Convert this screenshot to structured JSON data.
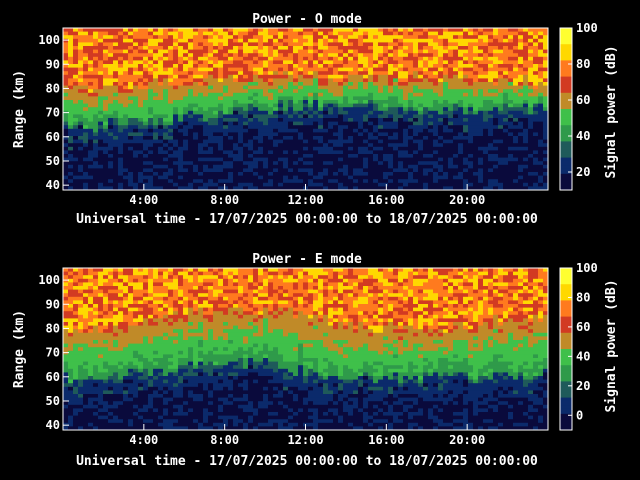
{
  "figure": {
    "background": "#000000",
    "colormap": [
      "#0a0a3c",
      "#0b2a6b",
      "#1f5a5a",
      "#2f9a4a",
      "#3fc04a",
      "#c08a28",
      "#d23a22",
      "#ff7a1e",
      "#ffd800",
      "#ffff30"
    ]
  },
  "chart_data": [
    {
      "type": "heatmap",
      "title": "Power - O mode",
      "xlabel": "Universal time - 17/07/2025 00:00:00 to 18/07/2025 00:00:00",
      "ylabel": "Range (km)",
      "colorbar_label": "Signal power (dB)",
      "x_ticks": [
        "4:00",
        "8:00",
        "12:00",
        "16:00",
        "20:00"
      ],
      "x_tick_hours": [
        4,
        8,
        12,
        16,
        20
      ],
      "xlim_hours": [
        0,
        24
      ],
      "y_ticks": [
        40,
        50,
        60,
        70,
        80,
        90,
        100
      ],
      "ylim": [
        38,
        105
      ],
      "colorbar_ticks": [
        20,
        40,
        60,
        80,
        100
      ],
      "colorbar_range": [
        10,
        100
      ],
      "profile_hours": [
        0,
        2,
        4,
        6,
        8,
        10,
        12,
        14,
        16,
        18,
        20,
        22,
        24
      ],
      "green_band_bottom_km": [
        64,
        65,
        66,
        68,
        70,
        72,
        73,
        74,
        72,
        71,
        72,
        72,
        72
      ],
      "red_band_bottom_km": [
        80,
        80,
        82,
        84,
        84,
        85,
        86,
        84,
        84,
        84,
        84,
        84,
        82
      ]
    },
    {
      "type": "heatmap",
      "title": "Power - E mode",
      "xlabel": "Universal time - 17/07/2025 00:00:00 to 18/07/2025 00:00:00",
      "ylabel": "Range (km)",
      "colorbar_label": "Signal power (dB)",
      "x_ticks": [
        "4:00",
        "8:00",
        "12:00",
        "16:00",
        "20:00"
      ],
      "x_tick_hours": [
        4,
        8,
        12,
        16,
        20
      ],
      "xlim_hours": [
        0,
        24
      ],
      "y_ticks": [
        40,
        50,
        60,
        70,
        80,
        90,
        100
      ],
      "ylim": [
        38,
        105
      ],
      "colorbar_ticks": [
        0,
        20,
        40,
        60,
        80,
        100
      ],
      "colorbar_range": [
        -10,
        100
      ],
      "profile_hours": [
        0,
        2,
        4,
        6,
        8,
        10,
        12,
        14,
        16,
        18,
        20,
        22,
        24
      ],
      "green_band_bottom_km": [
        60,
        60,
        62,
        64,
        66,
        66,
        62,
        60,
        60,
        60,
        60,
        60,
        62
      ],
      "red_band_bottom_km": [
        80,
        80,
        84,
        86,
        88,
        88,
        86,
        82,
        80,
        80,
        82,
        84,
        84
      ]
    }
  ]
}
